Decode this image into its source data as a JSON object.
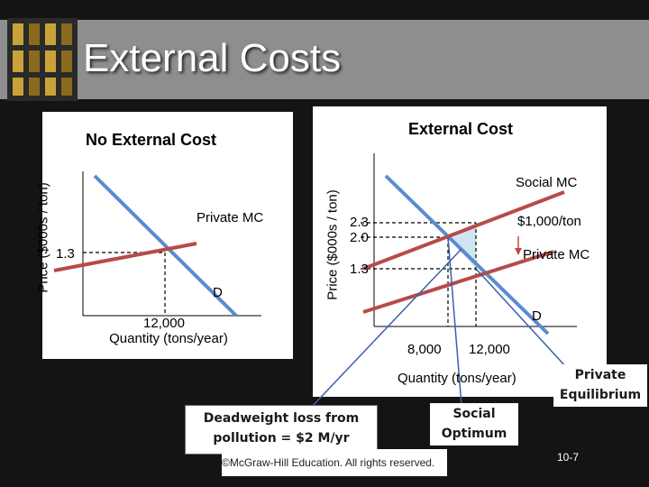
{
  "slide": {
    "title": "External Costs",
    "page_number": "10-7",
    "copyright": "©McGraw-Hill Education. All rights reserved."
  },
  "left_panel": {
    "title": "No External Cost",
    "y_axis_label": "Price ($000s / ton)",
    "price_label": "1.3",
    "supply_label": "Private MC",
    "demand_label": "D",
    "quantity_value": "12,000",
    "x_axis_label": "Quantity (tons/year)"
  },
  "right_panel": {
    "title": "External Cost",
    "y_axis_label": "Price ($000s / ton)",
    "social_mc_label": "Social MC",
    "private_mc_label": "Private MC",
    "demand_label": "D",
    "gap_label": "$1,000/ton",
    "price_high": "2.3",
    "price_mid": "2.0",
    "price_low": "1.3",
    "quantity_left": "8,000",
    "quantity_right": "12,000",
    "x_axis_label": "Quantity (tons/year)"
  },
  "callouts": {
    "deadweight": "Deadweight loss from pollution = $2 M/yr",
    "social_optimum": "Social Optimum",
    "private_equilibrium": "Private Equilibrium"
  },
  "colors": {
    "demand_line": "#5b8bd0",
    "supply_line": "#b84a4a",
    "deadweight_fill": "#cfe6f2",
    "title_band": "#8e8e8e",
    "background": "#141414"
  }
}
